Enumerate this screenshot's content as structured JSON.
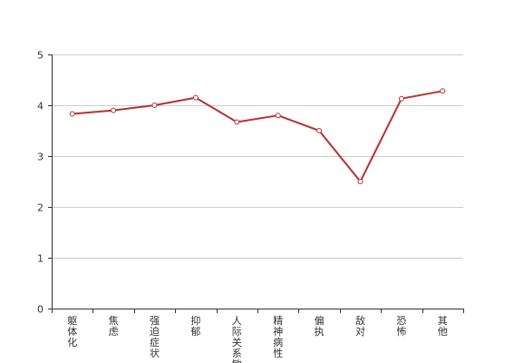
{
  "chart_data": {
    "type": "line",
    "title": "",
    "xlabel": "",
    "ylabel": "",
    "ylim": [
      0,
      5
    ],
    "yticks": [
      0,
      1,
      2,
      3,
      4,
      5
    ],
    "grid": true,
    "legend": "none",
    "categories": [
      "躯体化",
      "焦虑",
      "强迫症状",
      "抑郁",
      "人际关系敏感",
      "精神病性",
      "偏执",
      "敌对",
      "恐怖",
      "其他"
    ],
    "series": [
      {
        "color": "#b83232",
        "values": [
          3.83,
          3.9,
          4.0,
          4.15,
          3.67,
          3.8,
          3.5,
          2.5,
          4.13,
          4.28
        ]
      }
    ]
  }
}
